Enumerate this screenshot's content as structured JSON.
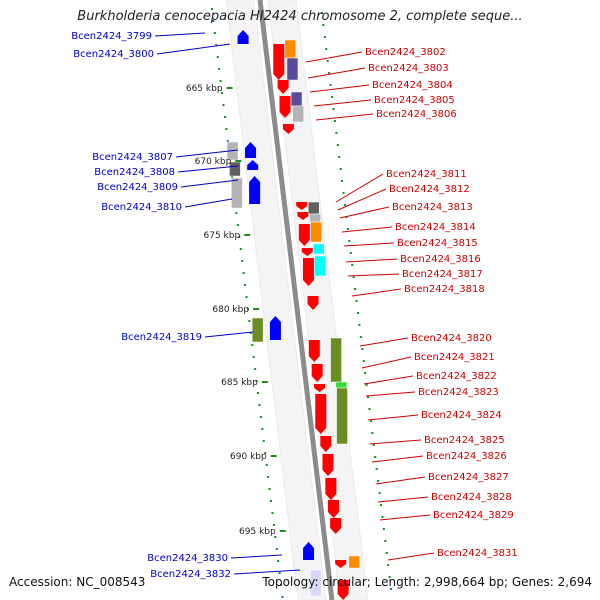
{
  "title": "Burkholderia cenocepacia HI2424 chromosome 2, complete seque...",
  "footer": {
    "accession": "Accession: NC_008543",
    "topology": "Topology: circular; Length: 2,998,664 bp; Genes: 2,694"
  },
  "kbp_labels": [
    "665 kbp",
    "670 kbp",
    "675 kbp",
    "680 kbp",
    "685 kbp",
    "690 kbp",
    "695 kbp"
  ],
  "labels_left": [
    "Bcen2424_3799",
    "Bcen2424_3800",
    "Bcen2424_3807",
    "Bcen2424_3808",
    "Bcen2424_3809",
    "Bcen2424_3810",
    "Bcen2424_3819",
    "Bcen2424_3830",
    "Bcen2424_3832"
  ],
  "labels_right": [
    "Bcen2424_3802",
    "Bcen2424_3803",
    "Bcen2424_3804",
    "Bcen2424_3805",
    "Bcen2424_3806",
    "Bcen2424_3811",
    "Bcen2424_3812",
    "Bcen2424_3813",
    "Bcen2424_3814",
    "Bcen2424_3815",
    "Bcen2424_3816",
    "Bcen2424_3817",
    "Bcen2424_3818",
    "Bcen2424_3820",
    "Bcen2424_3821",
    "Bcen2424_3822",
    "Bcen2424_3823",
    "Bcen2424_3824",
    "Bcen2424_3825",
    "Bcen2424_3826",
    "Bcen2424_3827",
    "Bcen2424_3828",
    "Bcen2424_3829",
    "Bcen2424_3831"
  ],
  "colors": {
    "forward_cds": "#ff0000",
    "reverse_cds": "#0000ff",
    "backbone": "#8c8c8c",
    "left_label": "#0000cc",
    "right_label": "#cc0000",
    "tick": "#1e8c1e",
    "cog_orange": "#ff8c00",
    "cog_purple": "#5a4a9a",
    "cog_gray": "#b4b4b4",
    "cog_olive": "#6b8e23",
    "cog_cyan": "#00ffff",
    "cog_green": "#33dd33"
  }
}
